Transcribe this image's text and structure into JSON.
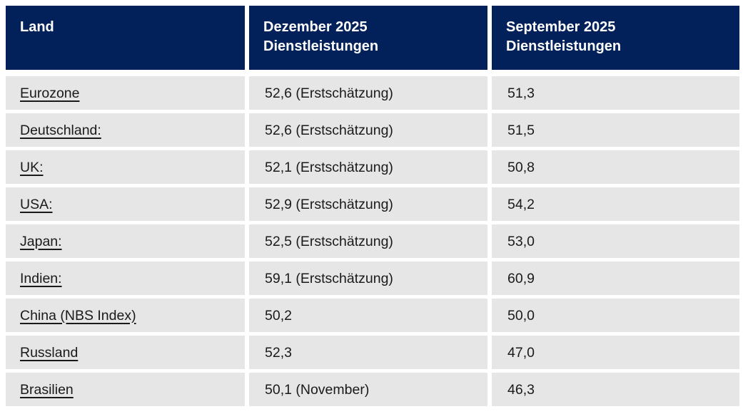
{
  "chart_data": {
    "type": "table",
    "columns": [
      "Land",
      "Dezember 2025 Dienstleistungen",
      "September 2025 Dienstleistungen"
    ],
    "rows": [
      [
        "Eurozone",
        "52,6 (Erstschätzung)",
        "51,3"
      ],
      [
        "Deutschland:",
        "52,6 (Erstschätzung)",
        "51,5"
      ],
      [
        "UK:",
        "52,1 (Erstschätzung)",
        "50,8"
      ],
      [
        "USA:",
        "52,9 (Erstschätzung)",
        "54,2"
      ],
      [
        "Japan:",
        "52,5 (Erstschätzung)",
        "53,0"
      ],
      [
        "Indien:",
        "59,1 (Erstschätzung)",
        "60,9"
      ],
      [
        "China (NBS Index)",
        "50,2",
        "50,0"
      ],
      [
        "Russland",
        "52,3",
        "47,0"
      ],
      [
        "Brasilien",
        "50,1 (November)",
        "46,3"
      ]
    ],
    "layout": {
      "legend": "none",
      "grid": "off",
      "header_position": "top",
      "country_links_underlined": true
    }
  },
  "colors": {
    "header_bg": "#02215a",
    "header_text": "#ffffff",
    "cell_bg": "#e6e6e6",
    "cell_text": "#1a1a1a",
    "page_bg": "#ffffff"
  }
}
